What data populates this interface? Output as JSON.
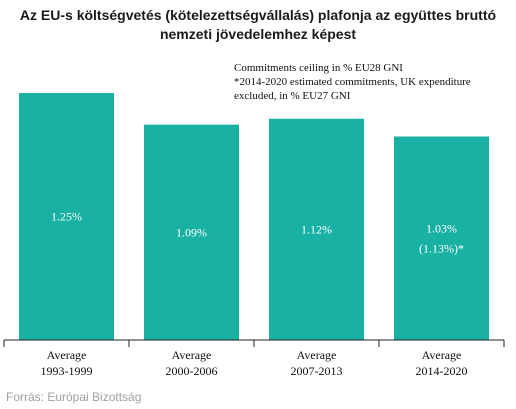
{
  "title_lines": [
    "Az EU-s költségvetés (kötelezettségvállalás) plafonja az együttes bruttó",
    "nemzeti jövedelemhez képest"
  ],
  "note_lines": [
    "Commitments ceiling in % EU28 GNI",
    "*2014-2020 estimated commitments, UK expenditure",
    "excluded, in % EU27 GNI"
  ],
  "source": "Forrás: Európai Bizottság",
  "chart_data": {
    "type": "bar",
    "categories": [
      [
        "Average",
        "1993-1999"
      ],
      [
        "Average",
        "2000-2006"
      ],
      [
        "Average",
        "2007-2013"
      ],
      [
        "Average",
        "2014-2020"
      ]
    ],
    "values": [
      1.25,
      1.09,
      1.12,
      1.03
    ],
    "data_labels": [
      [
        "1.25%"
      ],
      [
        "1.09%"
      ],
      [
        "1.12%"
      ],
      [
        "1.03%",
        "(1.13%)*"
      ]
    ],
    "bar_color": "#18b1a3",
    "ylim": [
      0,
      1.64
    ],
    "grid": false,
    "legend": "none"
  }
}
